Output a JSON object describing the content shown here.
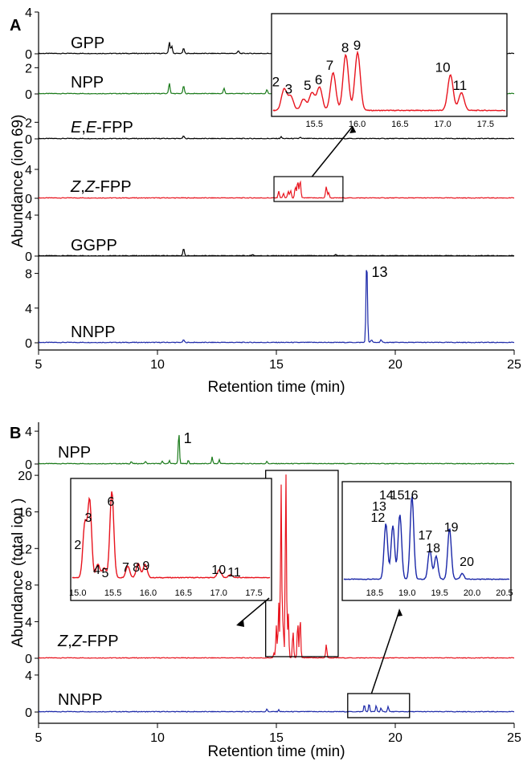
{
  "chart_data": [
    {
      "panel": "A",
      "type": "line",
      "xlabel": "Retention time (min)",
      "ylabel": "Abundance (ion 69)",
      "xlim": [
        5,
        25
      ],
      "xticks": [
        5,
        10,
        15,
        20,
        25
      ],
      "traces": [
        {
          "name": "GPP",
          "color": "#000000",
          "ylim": [
            0,
            4
          ],
          "yticks": [
            "0",
            "4"
          ],
          "peaks": [
            [
              10.5,
              1.1
            ],
            [
              10.6,
              0.7
            ],
            [
              11.1,
              0.5
            ],
            [
              13.4,
              0.25
            ]
          ]
        },
        {
          "name": "NPP",
          "color": "#1a7a1a",
          "ylim": [
            0,
            3
          ],
          "yticks": [
            "0",
            "2"
          ],
          "peaks": [
            [
              10.5,
              0.8
            ],
            [
              11.1,
              0.6
            ],
            [
              12.8,
              0.4
            ],
            [
              14.6,
              0.3
            ]
          ]
        },
        {
          "name": "E,E-FPP",
          "color": "#000000",
          "ylim": [
            0,
            3
          ],
          "yticks": [
            "0",
            "2"
          ],
          "peaks": [
            [
              11.1,
              0.3
            ],
            [
              15.2,
              0.2
            ],
            [
              16.0,
              0.15
            ]
          ]
        },
        {
          "name": "Z,Z-FPP",
          "color": "#e8141e",
          "ylim": [
            0,
            6
          ],
          "yticks": [
            "0",
            "4"
          ],
          "peaks": [
            [
              15.1,
              0.9
            ],
            [
              15.3,
              0.6
            ],
            [
              15.5,
              0.9
            ],
            [
              15.6,
              1.0
            ],
            [
              15.8,
              1.5
            ],
            [
              15.9,
              2.3
            ],
            [
              16.0,
              2.4
            ],
            [
              17.1,
              1.6
            ],
            [
              17.2,
              0.7
            ]
          ]
        },
        {
          "name": "GGPP",
          "color": "#000000",
          "ylim": [
            0,
            4
          ],
          "yticks": [
            "0",
            "4"
          ],
          "peaks": [
            [
              11.1,
              0.7
            ],
            [
              14.0,
              0.15
            ],
            [
              17.5,
              0.1
            ]
          ]
        },
        {
          "name": "NNPP",
          "color": "#1a27a8",
          "ylim": [
            0,
            10
          ],
          "yticks": [
            "0",
            "4",
            "8"
          ],
          "peaks": [
            [
              11.1,
              0.3
            ],
            [
              18.8,
              9.6
            ],
            [
              19.0,
              0.3
            ],
            [
              19.4,
              0.3
            ]
          ]
        }
      ],
      "inset": {
        "xlim": [
          15.0,
          17.75
        ],
        "xticks": [
          "15.5",
          "16.0",
          "16.5",
          "17.0",
          "17.5"
        ],
        "color": "#e8141e",
        "peaks": [
          [
            15.13,
            0.38
          ],
          [
            15.21,
            0.25
          ],
          [
            15.36,
            0.2
          ],
          [
            15.46,
            0.32
          ],
          [
            15.55,
            0.42
          ],
          [
            15.71,
            0.68
          ],
          [
            15.86,
            1.0
          ],
          [
            16.0,
            1.04
          ],
          [
            17.1,
            0.64
          ],
          [
            17.23,
            0.32
          ]
        ],
        "labels": [
          "2",
          "3",
          "5",
          "6",
          "7",
          "8",
          "9",
          "10",
          "11"
        ],
        "label_x": [
          15.05,
          15.2,
          15.42,
          15.55,
          15.68,
          15.86,
          16.0,
          17.0,
          17.2
        ]
      },
      "annotations": [
        {
          "text": "13",
          "x": 18.8
        }
      ]
    },
    {
      "panel": "B",
      "type": "line",
      "xlabel": "Retention time (min)",
      "ylabel": "Abundance (total ion )",
      "xlim": [
        5,
        25
      ],
      "xticks": [
        5,
        10,
        15,
        20,
        25
      ],
      "traces": [
        {
          "name": "NPP",
          "color": "#1a7a1a",
          "ylim": [
            0,
            4.6
          ],
          "yticks": [
            "0",
            "4"
          ],
          "peaks": [
            [
              8.9,
              0.25
            ],
            [
              9.5,
              0.3
            ],
            [
              10.2,
              0.3
            ],
            [
              10.5,
              0.4
            ],
            [
              10.9,
              3.9
            ],
            [
              11.3,
              0.4
            ],
            [
              12.3,
              0.8
            ],
            [
              12.6,
              0.5
            ],
            [
              14.6,
              0.3
            ]
          ]
        },
        {
          "name": "Z,Z-FPP",
          "color": "#e8141e",
          "ylim": [
            0,
            20.8
          ],
          "yticks": [
            "0",
            "4",
            "8",
            "12",
            "16",
            "20"
          ],
          "peaks": [
            [
              14.9,
              0.5
            ],
            [
              15.0,
              3.5
            ],
            [
              15.1,
              6.0
            ],
            [
              15.2,
              19.0
            ],
            [
              15.28,
              4.0
            ],
            [
              15.4,
              20.5
            ],
            [
              15.5,
              5.0
            ],
            [
              15.7,
              3.0
            ],
            [
              15.9,
              4.0
            ],
            [
              16.0,
              4.5
            ],
            [
              17.1,
              1.5
            ]
          ]
        },
        {
          "name": "NNPP",
          "color": "#1a27a8",
          "ylim": [
            0,
            4.6
          ],
          "yticks": [
            "0",
            "4"
          ],
          "peaks": [
            [
              14.6,
              0.3
            ],
            [
              15.1,
              0.2
            ],
            [
              18.7,
              0.8
            ],
            [
              18.9,
              0.9
            ],
            [
              19.2,
              0.7
            ],
            [
              19.4,
              0.4
            ],
            [
              19.7,
              0.6
            ]
          ]
        }
      ],
      "insets": [
        {
          "xlim": [
            14.9,
            17.75
          ],
          "xticks": [
            "15.0",
            "15.5",
            "16.0",
            "16.5",
            "17.0",
            "17.5"
          ],
          "color": "#e8141e",
          "peaks": [
            [
              15.08,
              0.55
            ],
            [
              15.15,
              0.8
            ],
            [
              15.27,
              0.14
            ],
            [
              15.36,
              0.1
            ],
            [
              15.47,
              0.9
            ],
            [
              15.7,
              0.12
            ],
            [
              15.85,
              0.15
            ],
            [
              15.95,
              0.14
            ],
            [
              17.02,
              0.08
            ],
            [
              17.18,
              0.03
            ]
          ],
          "labels": [
            "2",
            "3",
            "4",
            "5",
            "6",
            "7",
            "8",
            "9",
            "10",
            "11"
          ],
          "label_x": [
            15.0,
            15.15,
            15.27,
            15.39,
            15.47,
            15.68,
            15.83,
            15.97,
            17.0,
            17.22
          ]
        },
        {
          "xlim": [
            18.0,
            20.6
          ],
          "xticks": [
            "18.5",
            "19.0",
            "19.5",
            "20.0",
            "20.5"
          ],
          "color": "#1a27a8",
          "peaks": [
            [
              18.66,
              0.6
            ],
            [
              18.77,
              0.58
            ],
            [
              18.88,
              0.7
            ],
            [
              19.07,
              0.9
            ],
            [
              19.35,
              0.32
            ],
            [
              19.45,
              0.25
            ],
            [
              19.66,
              0.55
            ],
            [
              19.86,
              0.06
            ]
          ],
          "labels": [
            "12",
            "13",
            "14",
            "15",
            "16",
            "17",
            "18",
            "19",
            "20"
          ],
          "label_x": [
            18.55,
            18.57,
            18.68,
            18.85,
            19.06,
            19.28,
            19.4,
            19.68,
            19.92
          ]
        }
      ],
      "annotations": [
        {
          "text": "1",
          "x": 10.9
        }
      ]
    }
  ],
  "panel_labels": [
    "A",
    "B"
  ]
}
